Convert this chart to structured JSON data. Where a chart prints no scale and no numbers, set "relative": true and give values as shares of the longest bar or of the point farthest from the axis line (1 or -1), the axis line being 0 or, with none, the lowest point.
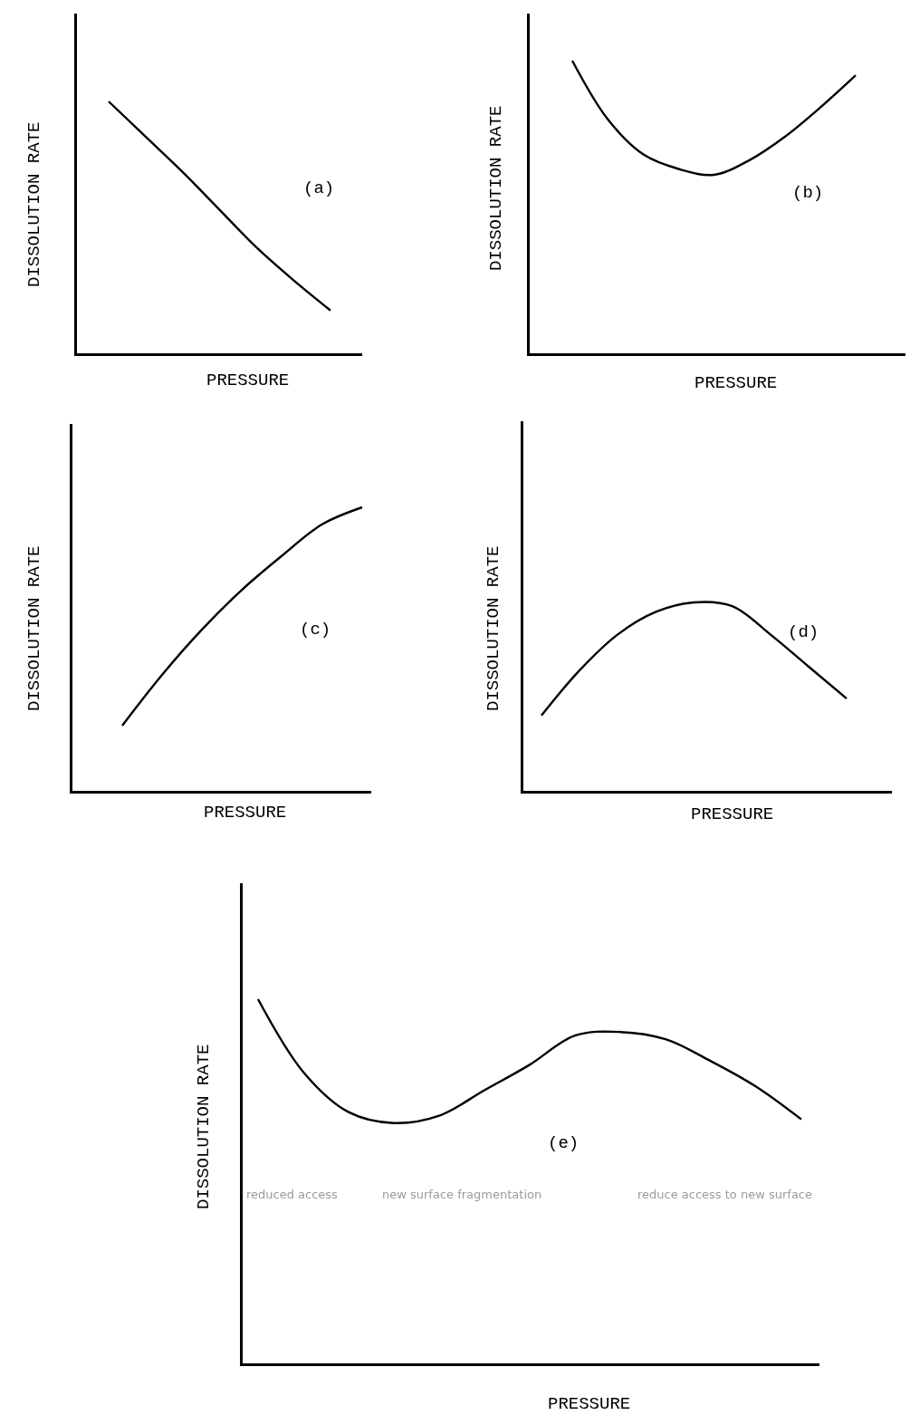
{
  "chart_data": [
    {
      "type": "line",
      "relative": true,
      "color": "#000000",
      "xlabel": "PRESSURE",
      "ylabel": "DISSOLUTION RATE",
      "categories": [
        null,
        null,
        null,
        null,
        null,
        null,
        null
      ],
      "values": [
        1,
        0.86,
        0.72,
        0.57,
        0.42,
        0.29,
        0.17
      ],
      "annotations": [
        "(a)"
      ]
    },
    {
      "type": "line",
      "relative": true,
      "color": "#000000",
      "xlabel": "PRESSURE",
      "ylabel": "DISSOLUTION RATE",
      "categories": [
        null,
        null,
        null,
        null,
        null,
        null,
        null,
        null,
        null
      ],
      "values": [
        1,
        0.8,
        0.68,
        0.63,
        0.61,
        0.66,
        0.74,
        0.84,
        0.95
      ],
      "annotations": [
        "(b)"
      ]
    },
    {
      "type": "line",
      "relative": true,
      "color": "#000000",
      "xlabel": "PRESSURE",
      "ylabel": "DISSOLUTION RATE",
      "categories": [
        null,
        null,
        null,
        null,
        null,
        null,
        null
      ],
      "values": [
        0.23,
        0.41,
        0.57,
        0.71,
        0.83,
        0.94,
        1
      ],
      "annotations": [
        "(c)"
      ]
    },
    {
      "type": "line",
      "relative": true,
      "color": "#000000",
      "xlabel": "PRESSURE",
      "ylabel": "DISSOLUTION RATE",
      "categories": [
        null,
        null,
        null,
        null,
        null,
        null,
        null,
        null,
        null
      ],
      "values": [
        0.4,
        0.64,
        0.83,
        0.95,
        1,
        0.98,
        0.83,
        0.66,
        0.49
      ],
      "annotations": [
        "(d)"
      ]
    },
    {
      "type": "line",
      "relative": true,
      "color": "#000000",
      "xlabel": "PRESSURE",
      "ylabel": "DISSOLUTION RATE",
      "categories": [
        null,
        null,
        null,
        null,
        null,
        null,
        null,
        null,
        null,
        null,
        null,
        null,
        null
      ],
      "values": [
        1,
        0.8,
        0.69,
        0.66,
        0.68,
        0.75,
        0.82,
        0.9,
        0.91,
        0.89,
        0.83,
        0.76,
        0.67
      ],
      "annotations": [
        "(e)",
        "reduced access",
        "new surface fragmentation",
        "reduce access to new surface"
      ]
    }
  ]
}
